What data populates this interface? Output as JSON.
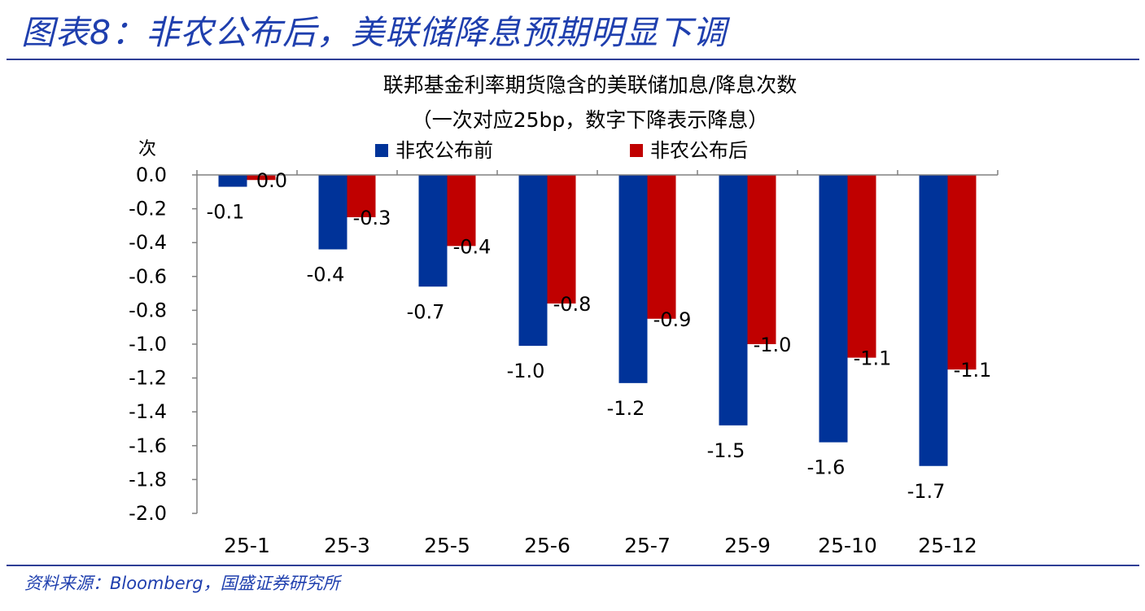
{
  "figure_title": "图表8：非农公布后，美联储降息预期明显下调",
  "source_note": "资料来源：Bloomberg，国盛证券研究所",
  "colors": {
    "title_blue": "#1f3fae",
    "series_before": "#003399",
    "series_after": "#c00000"
  },
  "chart_data": {
    "type": "bar",
    "title": "联邦基金利率期货隐含的美联储加息/降息次数",
    "subtitle": "（一次对应25bp，数字下降表示降息）",
    "ylabel": "次",
    "xlabel": "",
    "ylim": [
      -2.0,
      0.0
    ],
    "yticks": [
      "0.0",
      "-0.2",
      "-0.4",
      "-0.6",
      "-0.8",
      "-1.0",
      "-1.2",
      "-1.4",
      "-1.6",
      "-1.8",
      "-2.0"
    ],
    "ytick_values": [
      0.0,
      -0.2,
      -0.4,
      -0.6,
      -0.8,
      -1.0,
      -1.2,
      -1.4,
      -1.6,
      -1.8,
      -2.0
    ],
    "grid": false,
    "legend": "top",
    "categories": [
      "25-1",
      "25-3",
      "25-5",
      "25-6",
      "25-7",
      "25-9",
      "25-10",
      "25-12"
    ],
    "series": [
      {
        "name": "非农公布前",
        "color": "#003399",
        "values": [
          -0.07,
          -0.44,
          -0.66,
          -1.01,
          -1.23,
          -1.48,
          -1.58,
          -1.72
        ],
        "labels": [
          "-0.1",
          "-0.4",
          "-0.7",
          "-1.0",
          "-1.2",
          "-1.5",
          "-1.6",
          "-1.7"
        ]
      },
      {
        "name": "非农公布后",
        "color": "#c00000",
        "values": [
          -0.03,
          -0.25,
          -0.42,
          -0.76,
          -0.85,
          -1.0,
          -1.08,
          -1.15
        ],
        "labels": [
          "0.0",
          "-0.3",
          "-0.4",
          "-0.8",
          "-0.9",
          "-1.0",
          "-1.1",
          "-1.1"
        ]
      }
    ]
  }
}
